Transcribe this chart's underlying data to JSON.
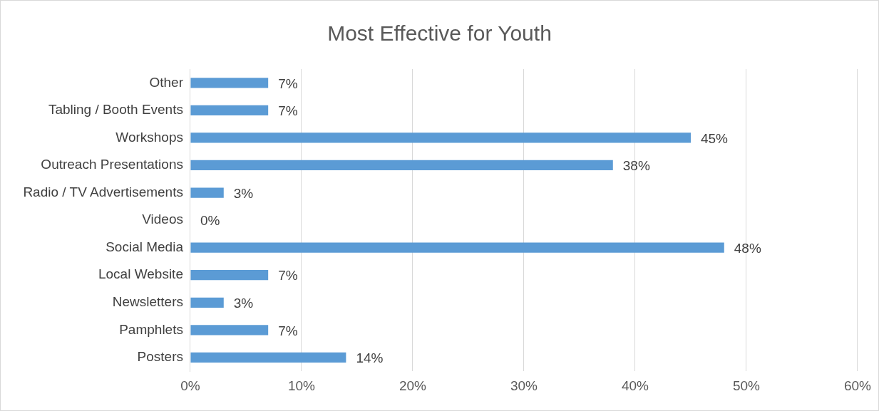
{
  "chart_data": {
    "type": "bar",
    "orientation": "horizontal",
    "title": "Most Effective for Youth",
    "categories": [
      "Other",
      "Tabling / Booth Events",
      "Workshops",
      "Outreach Presentations",
      "Radio / TV Advertisements",
      "Videos",
      "Social Media",
      "Local Website",
      "Newsletters",
      "Pamphlets",
      "Posters"
    ],
    "values": [
      7,
      7,
      45,
      38,
      3,
      0,
      48,
      7,
      3,
      7,
      14
    ],
    "value_labels": [
      "7%",
      "7%",
      "45%",
      "38%",
      "3%",
      "0%",
      "48%",
      "7%",
      "3%",
      "7%",
      "14%"
    ],
    "color": "#5b9bd5",
    "xlim": [
      0,
      60
    ],
    "xticks": [
      {
        "value": 0,
        "label": "0%"
      },
      {
        "value": 10,
        "label": "10%"
      },
      {
        "value": 20,
        "label": "20%"
      },
      {
        "value": 30,
        "label": "30%"
      },
      {
        "value": 40,
        "label": "40%"
      },
      {
        "value": 50,
        "label": "50%"
      },
      {
        "value": 60,
        "label": "60%"
      }
    ],
    "grid": "x",
    "legend": false
  }
}
